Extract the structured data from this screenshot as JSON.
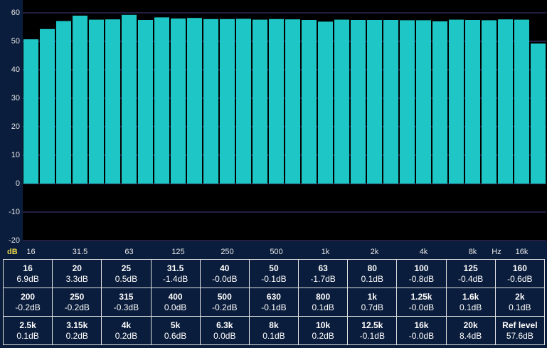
{
  "chart_data": {
    "type": "bar",
    "y_unit": "dB",
    "x_unit": "Hz",
    "categories": [
      "16",
      null,
      null,
      "31.5",
      null,
      null,
      "63",
      null,
      null,
      "125",
      null,
      null,
      "250",
      null,
      null,
      "500",
      null,
      null,
      "1k",
      null,
      null,
      "2k",
      null,
      null,
      "4k",
      null,
      null,
      "8k",
      null,
      null,
      "16k",
      null
    ],
    "values": [
      50.7,
      54.3,
      57.1,
      59.0,
      57.6,
      57.7,
      59.3,
      57.5,
      58.4,
      58.0,
      58.2,
      57.8,
      57.8,
      57.9,
      57.6,
      57.8,
      57.7,
      57.5,
      56.9,
      57.6,
      57.5,
      57.5,
      57.5,
      57.4,
      57.4,
      57.0,
      57.6,
      57.5,
      57.4,
      57.7,
      57.6,
      49.2
    ],
    "color": "#1fc6c6",
    "ylim": [
      -20,
      60
    ],
    "yticks": [
      -20,
      -10,
      0,
      10,
      20,
      30,
      40,
      50,
      60
    ],
    "grid": true
  },
  "table": {
    "rows": [
      [
        [
          "16",
          "6.9dB"
        ],
        [
          "20",
          "3.3dB"
        ],
        [
          "25",
          "0.5dB"
        ],
        [
          "31.5",
          "-1.4dB"
        ],
        [
          "40",
          "-0.0dB"
        ],
        [
          "50",
          "-0.1dB"
        ],
        [
          "63",
          "-1.7dB"
        ],
        [
          "80",
          "0.1dB"
        ],
        [
          "100",
          "-0.8dB"
        ],
        [
          "125",
          "-0.4dB"
        ],
        [
          "160",
          "-0.6dB"
        ]
      ],
      [
        [
          "200",
          "-0.2dB"
        ],
        [
          "250",
          "-0.2dB"
        ],
        [
          "315",
          "-0.3dB"
        ],
        [
          "400",
          "0.0dB"
        ],
        [
          "500",
          "-0.2dB"
        ],
        [
          "630",
          "-0.1dB"
        ],
        [
          "800",
          "0.1dB"
        ],
        [
          "1k",
          "0.7dB"
        ],
        [
          "1.25k",
          "-0.0dB"
        ],
        [
          "1.6k",
          "0.1dB"
        ],
        [
          "2k",
          "0.1dB"
        ]
      ],
      [
        [
          "2.5k",
          "0.1dB"
        ],
        [
          "3.15k",
          "0.2dB"
        ],
        [
          "4k",
          "0.2dB"
        ],
        [
          "5k",
          "0.6dB"
        ],
        [
          "6.3k",
          "0.0dB"
        ],
        [
          "8k",
          "0.1dB"
        ],
        [
          "10k",
          "0.2dB"
        ],
        [
          "12.5k",
          "-0.1dB"
        ],
        [
          "16k",
          "-0.0dB"
        ],
        [
          "20k",
          "8.4dB"
        ],
        [
          "Ref level",
          "57.6dB"
        ]
      ]
    ]
  }
}
